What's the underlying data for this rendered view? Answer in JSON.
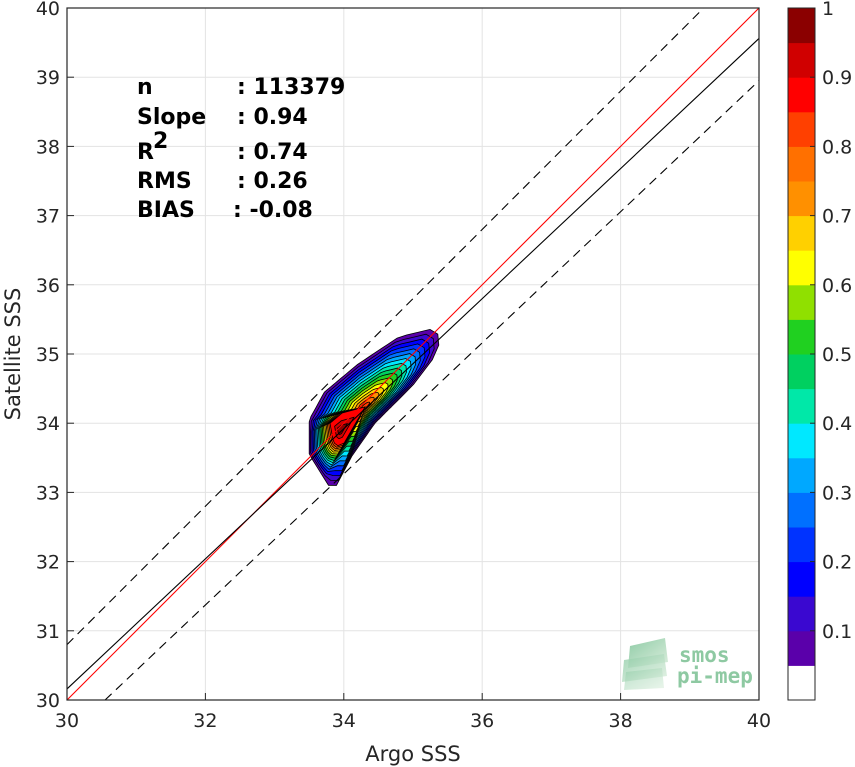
{
  "chart_data": {
    "type": "contour",
    "xlabel": "Argo SSS",
    "ylabel": "Satellite SSS",
    "xlim": [
      30,
      40
    ],
    "ylim": [
      30,
      40
    ],
    "xticks": [
      30,
      32,
      34,
      36,
      38,
      40
    ],
    "yticks": [
      30,
      31,
      32,
      33,
      34,
      35,
      36,
      37,
      38,
      39,
      40
    ],
    "grid": true,
    "stats": [
      {
        "label": "n",
        "value": ": 113379"
      },
      {
        "label": "Slope",
        "value": ": 0.94"
      },
      {
        "label": "R",
        "sup": "2",
        "value": ": 0.74"
      },
      {
        "label": "RMS",
        "value": ": 0.26"
      },
      {
        "label": "BIAS",
        "value": ": -0.08"
      }
    ],
    "lines": [
      {
        "id": "one_to_one",
        "color": "#ff0000",
        "dash": "solid",
        "points": [
          [
            30,
            30
          ],
          [
            40,
            40
          ]
        ]
      },
      {
        "id": "regression",
        "color": "#000000",
        "dash": "solid",
        "points": [
          [
            30,
            30.16
          ],
          [
            40,
            39.56
          ]
        ]
      },
      {
        "id": "upper_bound",
        "color": "#000000",
        "dash": "dashed",
        "points": [
          [
            30,
            30.8
          ],
          [
            39.2,
            40
          ]
        ]
      },
      {
        "id": "lower_bound",
        "color": "#000000",
        "dash": "dashed",
        "points": [
          [
            30.55,
            30
          ],
          [
            40,
            38.95
          ]
        ]
      }
    ],
    "density_contours": {
      "peak": [
        33.95,
        33.9
      ],
      "levels": [
        0.05,
        0.1,
        0.15,
        0.2,
        0.25,
        0.3,
        0.35,
        0.4,
        0.45,
        0.5,
        0.55,
        0.6,
        0.65,
        0.7,
        0.75,
        0.8,
        0.85,
        0.9,
        0.95
      ],
      "outer_boundary": [
        [
          33.78,
          33.1
        ],
        [
          33.5,
          33.55
        ],
        [
          33.5,
          34.05
        ],
        [
          33.72,
          34.45
        ],
        [
          34.2,
          34.85
        ],
        [
          34.8,
          35.25
        ],
        [
          35.35,
          35.38
        ],
        [
          35.38,
          35.05
        ],
        [
          35.0,
          34.55
        ],
        [
          34.45,
          34.0
        ],
        [
          34.1,
          33.5
        ],
        [
          33.9,
          33.1
        ]
      ],
      "inner_boundary": [
        [
          33.85,
          33.72
        ],
        [
          33.8,
          34.0
        ],
        [
          33.98,
          34.15
        ],
        [
          34.1,
          34.05
        ],
        [
          34.08,
          33.8
        ],
        [
          33.95,
          33.65
        ]
      ]
    },
    "colorbar": {
      "ticks": [
        "0.1",
        "0.2",
        "0.3",
        "0.4",
        "0.5",
        "0.6",
        "0.7",
        "0.8",
        "0.9",
        "1"
      ],
      "range": [
        0,
        1
      ],
      "bins": [
        {
          "from": 0.0,
          "to": 0.05,
          "color": "#ffffff"
        },
        {
          "from": 0.05,
          "to": 0.1,
          "color": "#5a00aa"
        },
        {
          "from": 0.1,
          "to": 0.15,
          "color": "#3a08d0"
        },
        {
          "from": 0.15,
          "to": 0.2,
          "color": "#0000ff"
        },
        {
          "from": 0.2,
          "to": 0.25,
          "color": "#0033ff"
        },
        {
          "from": 0.25,
          "to": 0.3,
          "color": "#0070ff"
        },
        {
          "from": 0.3,
          "to": 0.35,
          "color": "#00a8ff"
        },
        {
          "from": 0.35,
          "to": 0.4,
          "color": "#00e8ff"
        },
        {
          "from": 0.4,
          "to": 0.45,
          "color": "#00e8a8"
        },
        {
          "from": 0.45,
          "to": 0.5,
          "color": "#00d060"
        },
        {
          "from": 0.5,
          "to": 0.55,
          "color": "#20d020"
        },
        {
          "from": 0.55,
          "to": 0.6,
          "color": "#90e000"
        },
        {
          "from": 0.6,
          "to": 0.65,
          "color": "#ffff00"
        },
        {
          "from": 0.65,
          "to": 0.7,
          "color": "#ffd000"
        },
        {
          "from": 0.7,
          "to": 0.75,
          "color": "#ff9000"
        },
        {
          "from": 0.75,
          "to": 0.8,
          "color": "#ff7000"
        },
        {
          "from": 0.8,
          "to": 0.85,
          "color": "#ff4000"
        },
        {
          "from": 0.85,
          "to": 0.9,
          "color": "#ff0000"
        },
        {
          "from": 0.9,
          "to": 0.95,
          "color": "#d00000"
        },
        {
          "from": 0.95,
          "to": 1.0,
          "color": "#8b0000"
        }
      ]
    }
  },
  "logo": {
    "line1": "smos",
    "line2": "pi-mep",
    "color": "#8ec9a2"
  }
}
